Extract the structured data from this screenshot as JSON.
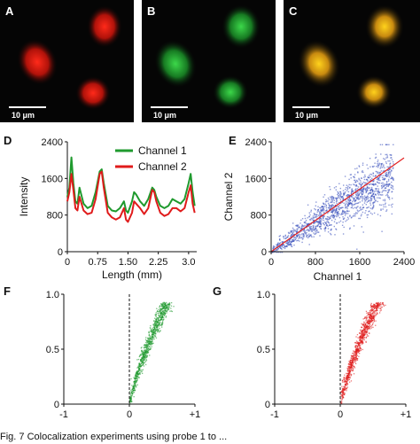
{
  "panels": {
    "a": {
      "letter": "A",
      "scale_label": "10 μm"
    },
    "b": {
      "letter": "B",
      "scale_label": "10 μm"
    },
    "c": {
      "letter": "C",
      "scale_label": "10 μm"
    },
    "d": {
      "letter": "D"
    },
    "e": {
      "letter": "E"
    },
    "f": {
      "letter": "F"
    },
    "g": {
      "letter": "G"
    }
  },
  "colors": {
    "channel1": "#1f9a2e",
    "channel2": "#e01b1b",
    "scatter_blue": "#2f47b8",
    "fit_line": "#e32222"
  },
  "caption": "Fig. 7   Colocalization experiments using probe 1 to ...",
  "chart_data": [
    {
      "type": "line",
      "panel": "D",
      "xlabel": "Length (mm)",
      "ylabel": "Intensity",
      "xlim": [
        0,
        3.2
      ],
      "ylim": [
        0,
        2400
      ],
      "xticks": [
        "0",
        "0.75",
        "1.50",
        "2.25",
        "3.0"
      ],
      "yticks": [
        "0",
        "800",
        "1600",
        "2400"
      ],
      "legend": "top-right",
      "x": [
        0,
        0.05,
        0.1,
        0.15,
        0.2,
        0.25,
        0.3,
        0.4,
        0.5,
        0.6,
        0.7,
        0.8,
        0.85,
        0.9,
        1.0,
        1.1,
        1.2,
        1.3,
        1.4,
        1.45,
        1.5,
        1.6,
        1.65,
        1.7,
        1.8,
        1.9,
        2.0,
        2.1,
        2.15,
        2.2,
        2.3,
        2.4,
        2.5,
        2.6,
        2.7,
        2.8,
        2.9,
        3.0,
        3.05,
        3.1,
        3.15
      ],
      "series": [
        {
          "name": "Channel 1",
          "values": [
            1200,
            1400,
            2060,
            1500,
            1100,
            1050,
            1400,
            1050,
            950,
            1000,
            1300,
            1750,
            1800,
            1500,
            1000,
            900,
            880,
            950,
            1100,
            900,
            850,
            1100,
            1300,
            1250,
            1100,
            1000,
            1150,
            1400,
            1350,
            1200,
            1000,
            950,
            1000,
            1150,
            1100,
            1050,
            1150,
            1500,
            1700,
            1300,
            1000
          ]
        },
        {
          "name": "Channel 2",
          "values": [
            1100,
            1300,
            1700,
            1350,
            950,
            900,
            1200,
            900,
            820,
            850,
            1150,
            1700,
            1750,
            1400,
            850,
            750,
            700,
            750,
            950,
            700,
            650,
            850,
            1100,
            1050,
            950,
            820,
            950,
            1350,
            1300,
            1100,
            850,
            780,
            820,
            950,
            950,
            880,
            950,
            1300,
            1450,
            1050,
            850
          ]
        }
      ]
    },
    {
      "type": "scatter",
      "panel": "E",
      "xlabel": "Channel 1",
      "ylabel": "Channel 2",
      "xlim": [
        0,
        2400
      ],
      "ylim": [
        0,
        2400
      ],
      "xticks": [
        "0",
        "800",
        "1600",
        "2400"
      ],
      "yticks": [
        "0",
        "800",
        "1600",
        "2400"
      ],
      "fit_line": [
        [
          0,
          0
        ],
        [
          2400,
          2050
        ]
      ]
    },
    {
      "type": "scatter",
      "panel": "F",
      "xlim": [
        -1,
        1
      ],
      "ylim": [
        0,
        1.0
      ],
      "xticks": [
        "-1",
        "0",
        "+1"
      ],
      "yticks": [
        "0",
        "0.5",
        "1.0"
      ]
    },
    {
      "type": "scatter",
      "panel": "G",
      "xlim": [
        -1,
        1
      ],
      "ylim": [
        0,
        1.0
      ],
      "xticks": [
        "-1",
        "0",
        "+1"
      ],
      "yticks": [
        "0",
        "0.5",
        "1.0"
      ]
    }
  ]
}
